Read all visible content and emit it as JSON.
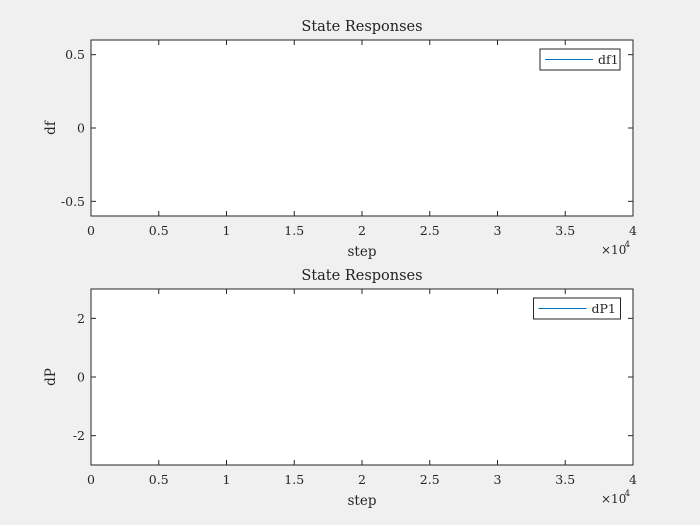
{
  "chart_data": [
    {
      "type": "line",
      "title": "State Responses",
      "xlabel": "step",
      "ylabel": "df",
      "xlim": [
        0,
        40000
      ],
      "ylim": [
        -0.6,
        0.6
      ],
      "x_ticks": [
        0,
        5000,
        10000,
        15000,
        20000,
        25000,
        30000,
        35000,
        40000
      ],
      "x_tick_labels": [
        "0",
        "0.5",
        "1",
        "1.5",
        "2",
        "2.5",
        "3",
        "3.5",
        "4"
      ],
      "x_exponent": "×10",
      "x_exponent_power": "4",
      "y_ticks": [
        -0.5,
        0,
        0.5
      ],
      "y_tick_labels": [
        "-0.5",
        "0",
        "0.5"
      ],
      "legend_position": "top-right",
      "grid": false,
      "series": [
        {
          "name": "df1",
          "color": "#0072bd",
          "x": [],
          "y": []
        }
      ]
    },
    {
      "type": "line",
      "title": "State Responses",
      "xlabel": "step",
      "ylabel": "dP",
      "xlim": [
        0,
        40000
      ],
      "ylim": [
        -3,
        3
      ],
      "x_ticks": [
        0,
        5000,
        10000,
        15000,
        20000,
        25000,
        30000,
        35000,
        40000
      ],
      "x_tick_labels": [
        "0",
        "0.5",
        "1",
        "1.5",
        "2",
        "2.5",
        "3",
        "3.5",
        "4"
      ],
      "x_exponent": "×10",
      "x_exponent_power": "4",
      "y_ticks": [
        -2,
        0,
        2
      ],
      "y_tick_labels": [
        "-2",
        "0",
        "2"
      ],
      "legend_position": "top-right",
      "grid": false,
      "series": [
        {
          "name": "dP1",
          "color": "#0072bd",
          "x": [],
          "y": []
        }
      ]
    }
  ]
}
